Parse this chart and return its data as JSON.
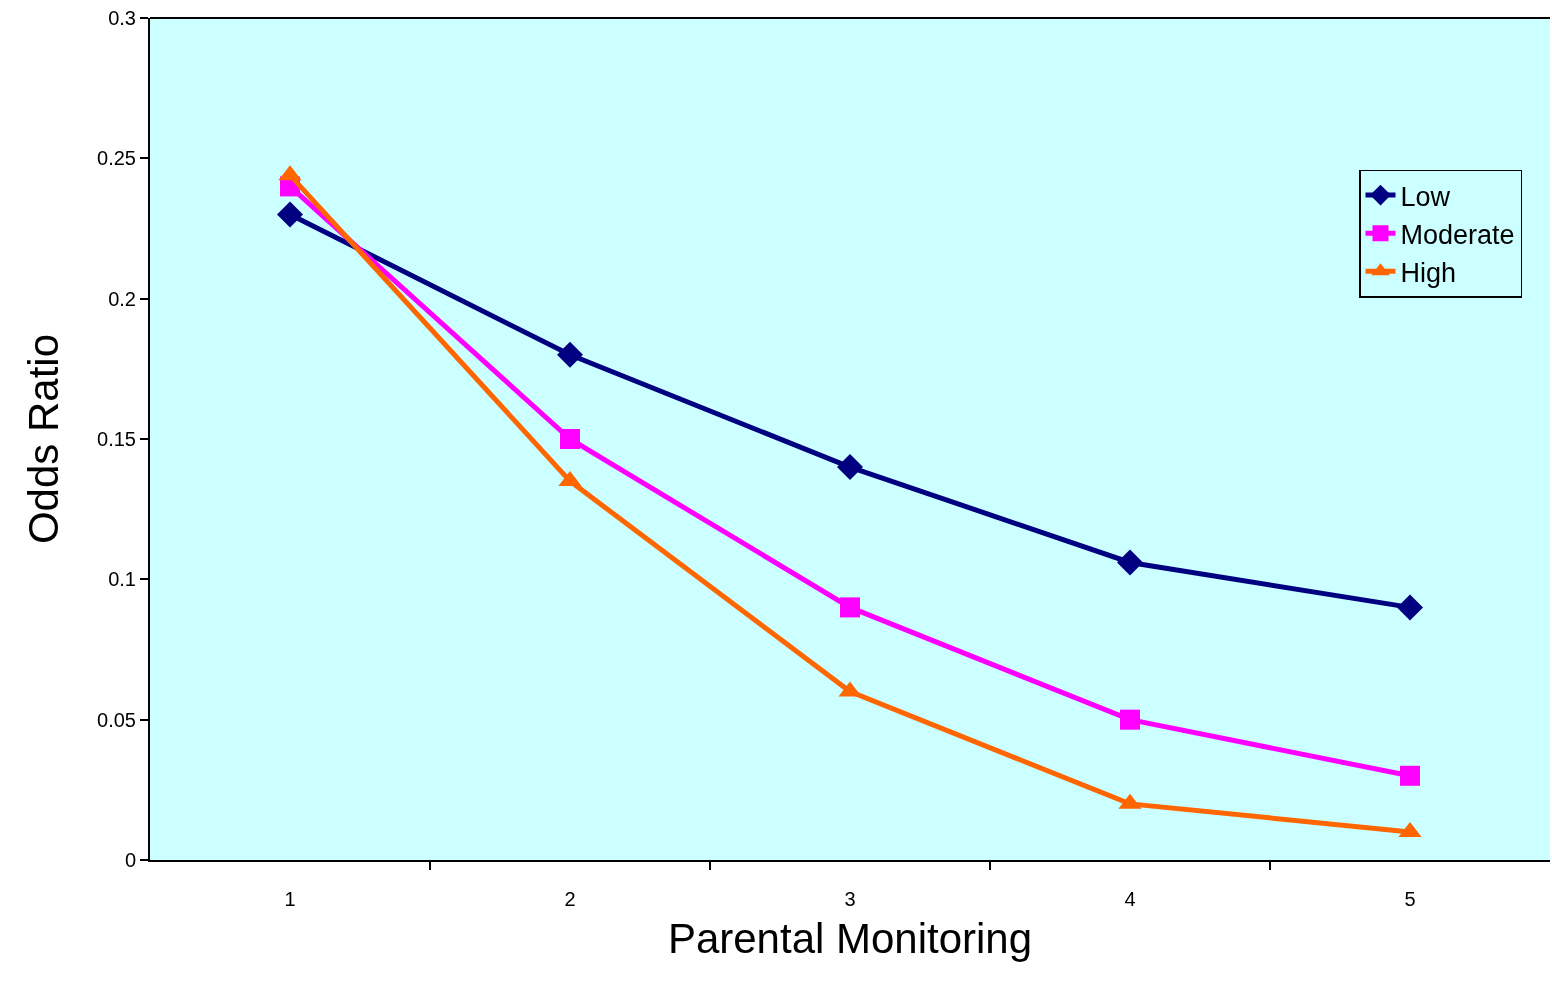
{
  "chart_data": {
    "type": "line",
    "xlabel": "Parental Monitoring",
    "ylabel": "Odds Ratio",
    "categories": [
      "1",
      "2",
      "3",
      "4",
      "5"
    ],
    "series": [
      {
        "name": "Low",
        "color": "#000080",
        "marker": "diamond",
        "values": [
          0.23,
          0.18,
          0.14,
          0.106,
          0.09
        ]
      },
      {
        "name": "Moderate",
        "color": "#ff00ff",
        "marker": "square",
        "values": [
          0.24,
          0.15,
          0.09,
          0.05,
          0.03
        ]
      },
      {
        "name": "High",
        "color": "#ff6600",
        "marker": "triangle",
        "values": [
          0.244,
          0.135,
          0.06,
          0.02,
          0.01
        ]
      }
    ],
    "ylim": [
      0,
      0.3
    ],
    "yticks": [
      0,
      0.05,
      0.1,
      0.15,
      0.2,
      0.25,
      0.3
    ],
    "grid": false,
    "legend": "top right",
    "line_style": "solid"
  }
}
